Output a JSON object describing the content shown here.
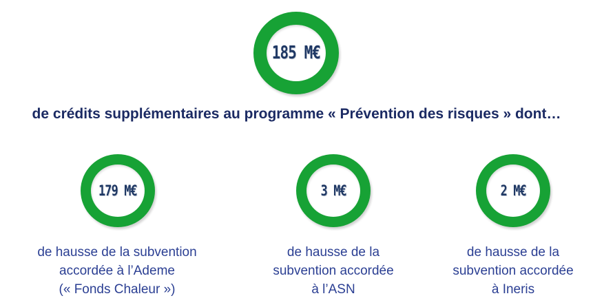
{
  "colors": {
    "ring_green": "#17A235",
    "heading_navy": "#1B2A63",
    "caption_blue": "#2B3F93",
    "value_navy": "#1F3864",
    "background": "#FFFFFF"
  },
  "main_stat": {
    "value": "185 M€",
    "heading": "de crédits supplémentaires au programme « Prévention des risques » dont…"
  },
  "sub_stats": [
    {
      "value": "179 M€",
      "caption_lines": [
        "de hausse de la subvention",
        "accordée à l’Ademe",
        "(« Fonds Chaleur »)"
      ]
    },
    {
      "value": "3 M€",
      "caption_lines": [
        "de hausse de la",
        "subvention accordée",
        "à l’ASN"
      ]
    },
    {
      "value": "2 M€",
      "caption_lines": [
        "de hausse de la",
        "subvention accordée",
        "à Ineris"
      ]
    }
  ]
}
